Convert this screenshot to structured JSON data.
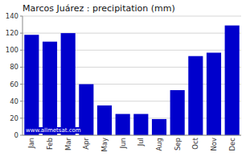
{
  "chart_data": {
    "type": "bar",
    "title": "Marcos Juárez : precipitation (mm)",
    "categories": [
      "Jan",
      "Feb",
      "Mar",
      "Apr",
      "May",
      "Jun",
      "Jul",
      "Aug",
      "Sep",
      "Oct",
      "Nov",
      "Dec"
    ],
    "values": [
      118,
      110,
      120,
      60,
      35,
      25,
      25,
      19,
      53,
      93,
      97,
      129
    ],
    "color": "#0000cc",
    "ylim": [
      0,
      140
    ],
    "yticks": [
      0,
      20,
      40,
      60,
      80,
      100,
      120,
      140
    ],
    "grid": true,
    "annotations": [
      "www.allmetsat.com"
    ]
  }
}
